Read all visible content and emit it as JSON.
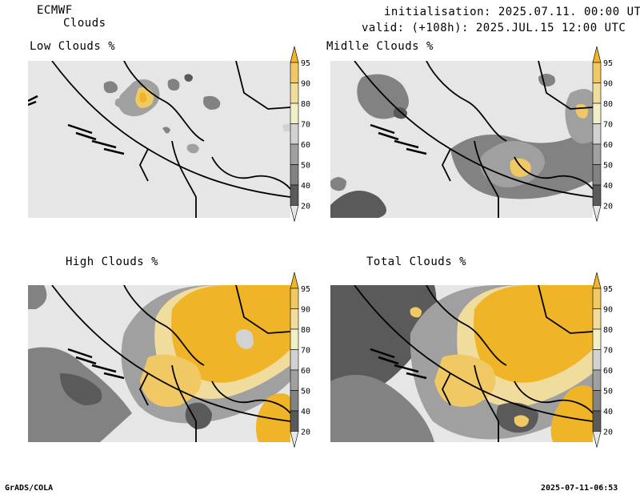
{
  "header": {
    "model": "ECMWF",
    "field": "Clouds",
    "init": "initialisation: 2025.07.11. 00:00 UTC",
    "valid": "valid: (+108h): 2025.JUL.15 12:00 UTC"
  },
  "panels": [
    {
      "title": "Low Clouds %"
    },
    {
      "title": "Midlle Clouds %"
    },
    {
      "title": "High Clouds %"
    },
    {
      "title": "Total Clouds %"
    }
  ],
  "colorbar": {
    "levels": [
      "95",
      "90",
      "80",
      "70",
      "60",
      "50",
      "40",
      "20"
    ],
    "colors": {
      "gt95": "#f0b428",
      "90_95": "#f0c864",
      "80_90": "#f0dc9c",
      "70_80": "#f0f0c8",
      "60_70": "#d2d2d2",
      "50_60": "#a0a0a0",
      "40_50": "#828282",
      "20_40": "#5a5a5a",
      "lt20": "#e6e6e6"
    }
  },
  "footer": {
    "left": "GrADS/COLA",
    "right": "2025-07-11-06:53"
  }
}
